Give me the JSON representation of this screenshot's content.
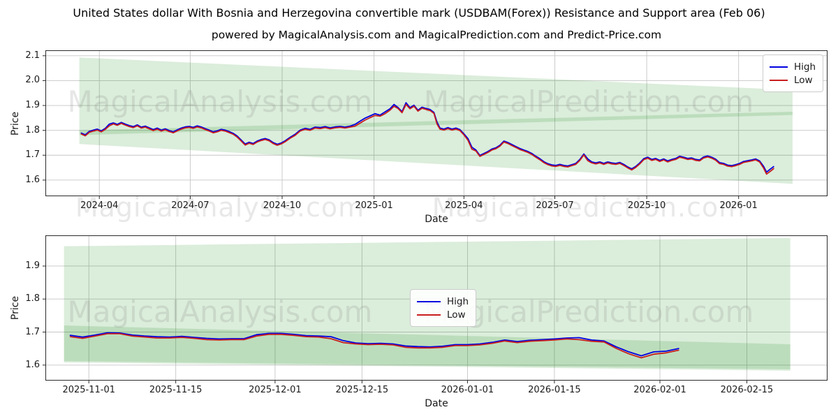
{
  "title": "United States dollar With Bosnia and Herzegovina convertible mark (USDBAM(Forex)) Resistance and Support area (Feb 06)",
  "subtitle": "powered by MagicalAnalysis.com and MagicalPrediction.com and Predict-Price.com",
  "watermark_left": "MagicalAnalysis.com",
  "watermark_right": "MagicalPrediction.com",
  "legend": {
    "high": "High",
    "low": "Low"
  },
  "colors": {
    "high": "#0000e0",
    "low": "#c81e1e",
    "band": "#008000",
    "grid": "#c6c6c6",
    "spine": "#2b2b2b"
  },
  "chart_data": [
    {
      "type": "line",
      "ylabel": "Price",
      "xlabel": "Date",
      "xlim": [
        "2024-02-07",
        "2026-03-31"
      ],
      "ylim": [
        1.535,
        2.122
      ],
      "grid": true,
      "legend_position": "top-right",
      "x_ticks": [
        {
          "date": "2024-04-01",
          "label": "2024-04"
        },
        {
          "date": "2024-07-01",
          "label": "2024-07"
        },
        {
          "date": "2024-10-01",
          "label": "2024-10"
        },
        {
          "date": "2025-01-01",
          "label": "2025-01"
        },
        {
          "date": "2025-04-01",
          "label": "2025-04"
        },
        {
          "date": "2025-07-01",
          "label": "2025-07"
        },
        {
          "date": "2025-10-01",
          "label": "2025-10"
        },
        {
          "date": "2026-01-01",
          "label": "2026-01"
        }
      ],
      "y_ticks": [
        {
          "value": 2.1,
          "label": "2.1"
        },
        {
          "value": 2.0,
          "label": "2.0"
        },
        {
          "value": 1.9,
          "label": "1.9"
        },
        {
          "value": 1.8,
          "label": "1.8"
        },
        {
          "value": 1.7,
          "label": "1.7"
        },
        {
          "value": 1.6,
          "label": "1.6"
        }
      ],
      "bands": [
        {
          "name": "resistance-area",
          "x": [
            "2024-03-12",
            "2026-02-24"
          ],
          "upper": [
            2.093,
            1.962
          ],
          "lower": [
            1.781,
            1.862
          ]
        },
        {
          "name": "support-area",
          "x": [
            "2024-03-12",
            "2026-02-24"
          ],
          "upper": [
            1.8,
            1.875
          ],
          "lower": [
            1.745,
            1.585
          ]
        }
      ],
      "series": {
        "x": [
          "2024-03-14",
          "2024-03-18",
          "2024-03-22",
          "2024-03-26",
          "2024-03-30",
          "2024-04-03",
          "2024-04-07",
          "2024-04-11",
          "2024-04-15",
          "2024-04-19",
          "2024-04-23",
          "2024-04-27",
          "2024-05-01",
          "2024-05-05",
          "2024-05-09",
          "2024-05-13",
          "2024-05-17",
          "2024-05-21",
          "2024-05-25",
          "2024-05-29",
          "2024-06-02",
          "2024-06-06",
          "2024-06-10",
          "2024-06-14",
          "2024-06-18",
          "2024-06-22",
          "2024-06-26",
          "2024-06-30",
          "2024-07-04",
          "2024-07-08",
          "2024-07-12",
          "2024-07-16",
          "2024-07-20",
          "2024-07-24",
          "2024-07-28",
          "2024-08-01",
          "2024-08-05",
          "2024-08-09",
          "2024-08-13",
          "2024-08-17",
          "2024-08-21",
          "2024-08-25",
          "2024-08-29",
          "2024-09-02",
          "2024-09-06",
          "2024-09-10",
          "2024-09-14",
          "2024-09-18",
          "2024-09-22",
          "2024-09-26",
          "2024-09-30",
          "2024-10-04",
          "2024-10-09",
          "2024-10-14",
          "2024-10-19",
          "2024-10-24",
          "2024-10-29",
          "2024-11-03",
          "2024-11-08",
          "2024-11-13",
          "2024-11-18",
          "2024-11-23",
          "2024-11-28",
          "2024-12-03",
          "2024-12-08",
          "2024-12-13",
          "2024-12-18",
          "2024-12-23",
          "2024-12-28",
          "2025-01-02",
          "2025-01-07",
          "2025-01-12",
          "2025-01-17",
          "2025-01-21",
          "2025-01-25",
          "2025-01-29",
          "2025-02-02",
          "2025-02-06",
          "2025-02-10",
          "2025-02-14",
          "2025-02-18",
          "2025-02-22",
          "2025-02-26",
          "2025-03-02",
          "2025-03-05",
          "2025-03-08",
          "2025-03-12",
          "2025-03-16",
          "2025-03-20",
          "2025-03-24",
          "2025-03-28",
          "2025-04-01",
          "2025-04-05",
          "2025-04-09",
          "2025-04-13",
          "2025-04-17",
          "2025-04-21",
          "2025-04-25",
          "2025-04-29",
          "2025-05-03",
          "2025-05-07",
          "2025-05-11",
          "2025-05-15",
          "2025-05-19",
          "2025-05-23",
          "2025-05-27",
          "2025-05-31",
          "2025-06-04",
          "2025-06-08",
          "2025-06-12",
          "2025-06-16",
          "2025-06-20",
          "2025-06-24",
          "2025-06-28",
          "2025-07-02",
          "2025-07-06",
          "2025-07-10",
          "2025-07-14",
          "2025-07-18",
          "2025-07-22",
          "2025-07-26",
          "2025-07-30",
          "2025-08-03",
          "2025-08-07",
          "2025-08-11",
          "2025-08-15",
          "2025-08-19",
          "2025-08-23",
          "2025-08-27",
          "2025-08-31",
          "2025-09-04",
          "2025-09-08",
          "2025-09-12",
          "2025-09-16",
          "2025-09-20",
          "2025-09-24",
          "2025-09-28",
          "2025-10-02",
          "2025-10-06",
          "2025-10-10",
          "2025-10-14",
          "2025-10-18",
          "2025-10-22",
          "2025-10-26",
          "2025-10-30",
          "2025-11-03",
          "2025-11-07",
          "2025-11-11",
          "2025-11-15",
          "2025-11-19",
          "2025-11-23",
          "2025-11-27",
          "2025-12-01",
          "2025-12-05",
          "2025-12-09",
          "2025-12-13",
          "2025-12-17",
          "2025-12-21",
          "2025-12-25",
          "2025-12-29",
          "2026-01-02",
          "2026-01-06",
          "2026-01-10",
          "2026-01-14",
          "2026-01-18",
          "2026-01-22",
          "2026-01-26",
          "2026-01-29",
          "2026-02-02",
          "2026-02-05"
        ],
        "high": [
          1.789,
          1.782,
          1.796,
          1.801,
          1.805,
          1.798,
          1.808,
          1.825,
          1.83,
          1.824,
          1.832,
          1.825,
          1.819,
          1.815,
          1.822,
          1.813,
          1.817,
          1.81,
          1.803,
          1.809,
          1.801,
          1.806,
          1.799,
          1.794,
          1.802,
          1.809,
          1.814,
          1.816,
          1.812,
          1.818,
          1.814,
          1.807,
          1.801,
          1.794,
          1.798,
          1.804,
          1.801,
          1.795,
          1.788,
          1.777,
          1.761,
          1.745,
          1.752,
          1.747,
          1.757,
          1.763,
          1.767,
          1.762,
          1.751,
          1.744,
          1.749,
          1.758,
          1.772,
          1.784,
          1.801,
          1.808,
          1.804,
          1.813,
          1.811,
          1.815,
          1.81,
          1.814,
          1.816,
          1.813,
          1.817,
          1.824,
          1.837,
          1.849,
          1.858,
          1.867,
          1.861,
          1.874,
          1.887,
          1.904,
          1.892,
          1.875,
          1.911,
          1.891,
          1.901,
          1.881,
          1.893,
          1.888,
          1.884,
          1.872,
          1.834,
          1.809,
          1.805,
          1.811,
          1.805,
          1.809,
          1.803,
          1.786,
          1.767,
          1.732,
          1.721,
          1.699,
          1.707,
          1.715,
          1.725,
          1.73,
          1.74,
          1.757,
          1.751,
          1.743,
          1.735,
          1.727,
          1.721,
          1.715,
          1.707,
          1.696,
          1.686,
          1.674,
          1.666,
          1.661,
          1.659,
          1.663,
          1.659,
          1.657,
          1.662,
          1.667,
          1.683,
          1.705,
          1.685,
          1.673,
          1.669,
          1.673,
          1.667,
          1.673,
          1.669,
          1.667,
          1.671,
          1.663,
          1.653,
          1.645,
          1.655,
          1.669,
          1.686,
          1.692,
          1.683,
          1.687,
          1.679,
          1.685,
          1.677,
          1.683,
          1.687,
          1.696,
          1.692,
          1.687,
          1.689,
          1.683,
          1.681,
          1.693,
          1.697,
          1.692,
          1.684,
          1.67,
          1.667,
          1.66,
          1.658,
          1.662,
          1.667,
          1.675,
          1.678,
          1.681,
          1.685,
          1.677,
          1.655,
          1.632,
          1.645,
          1.654
        ],
        "low": [
          1.785,
          1.778,
          1.792,
          1.797,
          1.801,
          1.794,
          1.804,
          1.818,
          1.826,
          1.82,
          1.828,
          1.821,
          1.815,
          1.811,
          1.818,
          1.809,
          1.813,
          1.806,
          1.799,
          1.805,
          1.797,
          1.802,
          1.795,
          1.79,
          1.798,
          1.805,
          1.81,
          1.812,
          1.808,
          1.814,
          1.81,
          1.803,
          1.797,
          1.79,
          1.794,
          1.8,
          1.797,
          1.791,
          1.784,
          1.773,
          1.757,
          1.741,
          1.748,
          1.743,
          1.753,
          1.759,
          1.763,
          1.758,
          1.747,
          1.74,
          1.745,
          1.754,
          1.768,
          1.78,
          1.797,
          1.804,
          1.8,
          1.809,
          1.807,
          1.811,
          1.806,
          1.81,
          1.812,
          1.809,
          1.813,
          1.817,
          1.829,
          1.841,
          1.851,
          1.86,
          1.857,
          1.867,
          1.881,
          1.897,
          1.888,
          1.871,
          1.904,
          1.887,
          1.897,
          1.877,
          1.889,
          1.884,
          1.88,
          1.868,
          1.826,
          1.805,
          1.801,
          1.807,
          1.801,
          1.805,
          1.799,
          1.782,
          1.76,
          1.724,
          1.717,
          1.695,
          1.703,
          1.711,
          1.721,
          1.726,
          1.736,
          1.753,
          1.747,
          1.739,
          1.731,
          1.723,
          1.717,
          1.711,
          1.703,
          1.692,
          1.682,
          1.67,
          1.662,
          1.657,
          1.655,
          1.659,
          1.655,
          1.653,
          1.658,
          1.663,
          1.679,
          1.701,
          1.678,
          1.669,
          1.665,
          1.669,
          1.663,
          1.669,
          1.665,
          1.663,
          1.667,
          1.659,
          1.649,
          1.641,
          1.651,
          1.665,
          1.682,
          1.688,
          1.679,
          1.683,
          1.675,
          1.681,
          1.673,
          1.679,
          1.683,
          1.692,
          1.688,
          1.683,
          1.685,
          1.679,
          1.677,
          1.689,
          1.693,
          1.688,
          1.68,
          1.666,
          1.663,
          1.656,
          1.654,
          1.658,
          1.663,
          1.671,
          1.674,
          1.677,
          1.681,
          1.673,
          1.648,
          1.624,
          1.636,
          1.646
        ]
      }
    },
    {
      "type": "line",
      "ylabel": "Price",
      "xlabel": "Date",
      "xlim": [
        "2025-10-25",
        "2026-02-28"
      ],
      "ylim": [
        1.553,
        1.993
      ],
      "grid": true,
      "legend_position": "center",
      "x_ticks": [
        {
          "date": "2025-11-01",
          "label": "2025-11-01"
        },
        {
          "date": "2025-11-15",
          "label": "2025-11-15"
        },
        {
          "date": "2025-12-01",
          "label": "2025-12-01"
        },
        {
          "date": "2025-12-15",
          "label": "2025-12-15"
        },
        {
          "date": "2026-01-01",
          "label": "2026-01-01"
        },
        {
          "date": "2026-01-15",
          "label": "2026-01-15"
        },
        {
          "date": "2026-02-01",
          "label": "2026-02-01"
        },
        {
          "date": "2026-02-15",
          "label": "2026-02-15"
        }
      ],
      "y_ticks": [
        {
          "value": 1.9,
          "label": "1.9"
        },
        {
          "value": 1.8,
          "label": "1.8"
        },
        {
          "value": 1.7,
          "label": "1.7"
        },
        {
          "value": 1.6,
          "label": "1.6"
        }
      ],
      "bands": [
        {
          "name": "resistance-area",
          "x": [
            "2025-10-28",
            "2026-02-22"
          ],
          "upper": [
            1.96,
            1.985
          ],
          "lower": [
            1.608,
            1.583
          ]
        },
        {
          "name": "support-area",
          "x": [
            "2025-10-28",
            "2026-02-22"
          ],
          "upper": [
            1.72,
            1.663
          ],
          "lower": [
            1.612,
            1.587
          ]
        }
      ],
      "series": {
        "x": [
          "2025-10-29",
          "2025-10-31",
          "2025-11-02",
          "2025-11-04",
          "2025-11-06",
          "2025-11-08",
          "2025-11-10",
          "2025-11-12",
          "2025-11-14",
          "2025-11-16",
          "2025-11-18",
          "2025-11-20",
          "2025-11-22",
          "2025-11-24",
          "2025-11-26",
          "2025-11-28",
          "2025-11-30",
          "2025-12-02",
          "2025-12-04",
          "2025-12-06",
          "2025-12-08",
          "2025-12-10",
          "2025-12-12",
          "2025-12-14",
          "2025-12-16",
          "2025-12-18",
          "2025-12-20",
          "2025-12-22",
          "2025-12-24",
          "2025-12-26",
          "2025-12-28",
          "2025-12-30",
          "2026-01-01",
          "2026-01-03",
          "2026-01-05",
          "2026-01-07",
          "2026-01-09",
          "2026-01-11",
          "2026-01-13",
          "2026-01-15",
          "2026-01-17",
          "2026-01-19",
          "2026-01-21",
          "2026-01-23",
          "2026-01-25",
          "2026-01-27",
          "2026-01-29",
          "2026-01-31",
          "2026-02-02",
          "2026-02-04"
        ],
        "high": [
          1.69,
          1.685,
          1.691,
          1.698,
          1.697,
          1.691,
          1.688,
          1.686,
          1.685,
          1.687,
          1.684,
          1.681,
          1.679,
          1.68,
          1.68,
          1.692,
          1.696,
          1.696,
          1.693,
          1.689,
          1.688,
          1.686,
          1.674,
          1.667,
          1.665,
          1.666,
          1.664,
          1.658,
          1.656,
          1.655,
          1.657,
          1.662,
          1.662,
          1.664,
          1.669,
          1.676,
          1.671,
          1.675,
          1.677,
          1.679,
          1.682,
          1.683,
          1.676,
          1.673,
          1.655,
          1.64,
          1.628,
          1.64,
          1.642,
          1.65
        ],
        "low": [
          1.686,
          1.681,
          1.688,
          1.695,
          1.695,
          1.688,
          1.685,
          1.682,
          1.682,
          1.684,
          1.681,
          1.677,
          1.676,
          1.677,
          1.677,
          1.688,
          1.693,
          1.693,
          1.69,
          1.686,
          1.685,
          1.68,
          1.668,
          1.664,
          1.662,
          1.663,
          1.661,
          1.654,
          1.652,
          1.652,
          1.654,
          1.659,
          1.659,
          1.661,
          1.666,
          1.673,
          1.668,
          1.672,
          1.674,
          1.676,
          1.679,
          1.677,
          1.672,
          1.67,
          1.65,
          1.634,
          1.622,
          1.633,
          1.637,
          1.645
        ]
      }
    }
  ]
}
